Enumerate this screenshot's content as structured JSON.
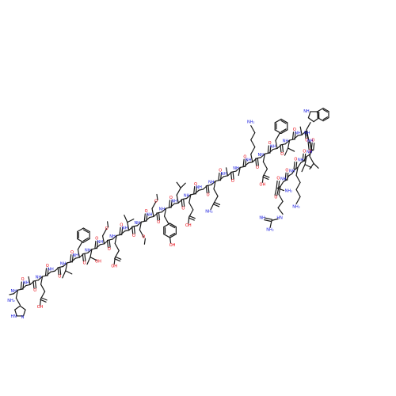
{
  "molecule": {
    "peptide_chain": [
      {
        "res": "His",
        "side": "imidazole",
        "up": false,
        "sideText": "HN"
      },
      {
        "res": "Ala",
        "side": "methyl",
        "up": true
      },
      {
        "res": "Glu",
        "side": "acid",
        "up": false,
        "sideText": "OH"
      },
      {
        "res": "Gly",
        "side": "none",
        "up": true
      },
      {
        "res": "Thr",
        "side": "branch",
        "up": false
      },
      {
        "res": "Phe",
        "side": "phenyl",
        "up": true
      },
      {
        "res": "Thr",
        "side": "branch",
        "up": false,
        "sideText": "OH"
      },
      {
        "res": "Ser",
        "side": "ether",
        "up": true
      },
      {
        "res": "Asp",
        "side": "acid",
        "up": false,
        "sideText": "OH"
      },
      {
        "res": "Val",
        "side": "branch",
        "up": true
      },
      {
        "res": "Ser",
        "side": "ether",
        "up": false
      },
      {
        "res": "Ser",
        "side": "ether",
        "up": true
      },
      {
        "res": "Tyr",
        "side": "phenol",
        "up": false,
        "sideText": "OH"
      },
      {
        "res": "Leu",
        "side": "isobutyl",
        "up": true
      },
      {
        "res": "Glu",
        "side": "acid",
        "up": false,
        "sideText": "OH"
      },
      {
        "res": "Gly",
        "side": "none",
        "up": true
      },
      {
        "res": "Gln",
        "side": "amide",
        "up": false,
        "sideText": "NH₂"
      },
      {
        "res": "Ala",
        "side": "methyl",
        "up": true
      },
      {
        "res": "Ala",
        "side": "methyl",
        "up": false
      },
      {
        "res": "Lys",
        "side": "amine",
        "up": true,
        "sideText": "NH₂"
      },
      {
        "res": "Glu",
        "side": "acid",
        "up": false,
        "sideText": "OH"
      },
      {
        "res": "Phe",
        "side": "phenyl",
        "up": true
      },
      {
        "res": "Ile",
        "side": "branch",
        "up": false
      },
      {
        "res": "Ala",
        "side": "methyl",
        "up": true
      },
      {
        "res": "Trp",
        "side": "indole",
        "up": true,
        "sideText": "NH"
      },
      {
        "res": "Leu",
        "side": "isobutyl",
        "up": false
      },
      {
        "res": "Val",
        "side": "branch",
        "up": false
      },
      {
        "res": "Lys",
        "side": "amine",
        "up": false,
        "sideText": "NH₂"
      },
      {
        "res": "Gly",
        "side": "none",
        "up": false
      },
      {
        "res": "Arg",
        "side": "guanidine",
        "up": false,
        "sideText": "NH₂"
      }
    ],
    "labels": {
      "amine": "NH",
      "carbonyl_o": "O",
      "hydroxyl": "OH",
      "primary_amine": "NH₂",
      "terminal_amide": "NH₂",
      "guanidine_imine": "NH",
      "guanidine_amine": "HN",
      "imidazole_n": "N"
    },
    "colors": {
      "bond": "#1a1a1a",
      "oxygen": "#e8000b",
      "nitrogen": "#1d20e0"
    }
  }
}
